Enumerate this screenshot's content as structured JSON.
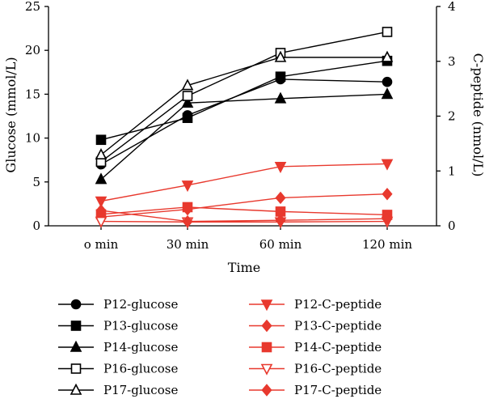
{
  "chart_data": {
    "type": "line",
    "categories": [
      "o min",
      "30 min",
      "60 min",
      "120 min"
    ],
    "xlabel": "Time",
    "ylabel": "Glucose (mmol/L)",
    "y2label": "C-peptide (nmol/L)",
    "ylim": [
      0,
      25
    ],
    "y2lim": [
      0,
      4
    ],
    "yticks": [
      "0",
      "5",
      "10",
      "15",
      "20",
      "25"
    ],
    "y2ticks": [
      "0",
      "1",
      "2",
      "3",
      "4"
    ],
    "grid": false,
    "legend_placement": "bottom",
    "series": [
      {
        "name": "P12-glucose",
        "axis": "left",
        "marker": "circle-filled",
        "color": "#000000",
        "values": [
          7.0,
          12.6,
          16.7,
          16.4
        ]
      },
      {
        "name": "P13-glucose",
        "axis": "left",
        "marker": "square-filled",
        "color": "#000000",
        "values": [
          9.8,
          12.3,
          17.0,
          18.8
        ]
      },
      {
        "name": "P14-glucose",
        "axis": "left",
        "marker": "triangle-up-filled",
        "color": "#000000",
        "values": [
          5.3,
          14.0,
          14.5,
          15.0
        ]
      },
      {
        "name": "P16-glucose",
        "axis": "left",
        "marker": "square-open",
        "color": "#000000",
        "values": [
          7.3,
          14.8,
          19.7,
          22.1
        ]
      },
      {
        "name": "P17-glucose",
        "axis": "left",
        "marker": "triangle-up-open",
        "color": "#000000",
        "values": [
          8.1,
          16.0,
          19.2,
          19.2
        ]
      },
      {
        "name": "P12-C-peptide",
        "axis": "right",
        "marker": "triangle-down-filled",
        "color": "#e8392e",
        "values": [
          0.45,
          0.74,
          1.08,
          1.13
        ]
      },
      {
        "name": "P13-C-peptide",
        "axis": "right",
        "marker": "diamond-filled",
        "color": "#e8392e",
        "values": [
          0.16,
          0.3,
          0.51,
          0.58
        ]
      },
      {
        "name": "P14-C-peptide",
        "axis": "right",
        "marker": "square-filled",
        "color": "#e8392e",
        "values": [
          0.21,
          0.34,
          0.26,
          0.2
        ]
      },
      {
        "name": "P16-C-peptide",
        "axis": "right",
        "marker": "triangle-down-open",
        "color": "#e8392e",
        "values": [
          0.08,
          0.07,
          0.07,
          0.08
        ]
      },
      {
        "name": "P17-C-peptide",
        "axis": "right",
        "marker": "diamond-filled",
        "color": "#e8392e",
        "values": [
          0.28,
          0.08,
          0.1,
          0.13
        ]
      }
    ]
  }
}
